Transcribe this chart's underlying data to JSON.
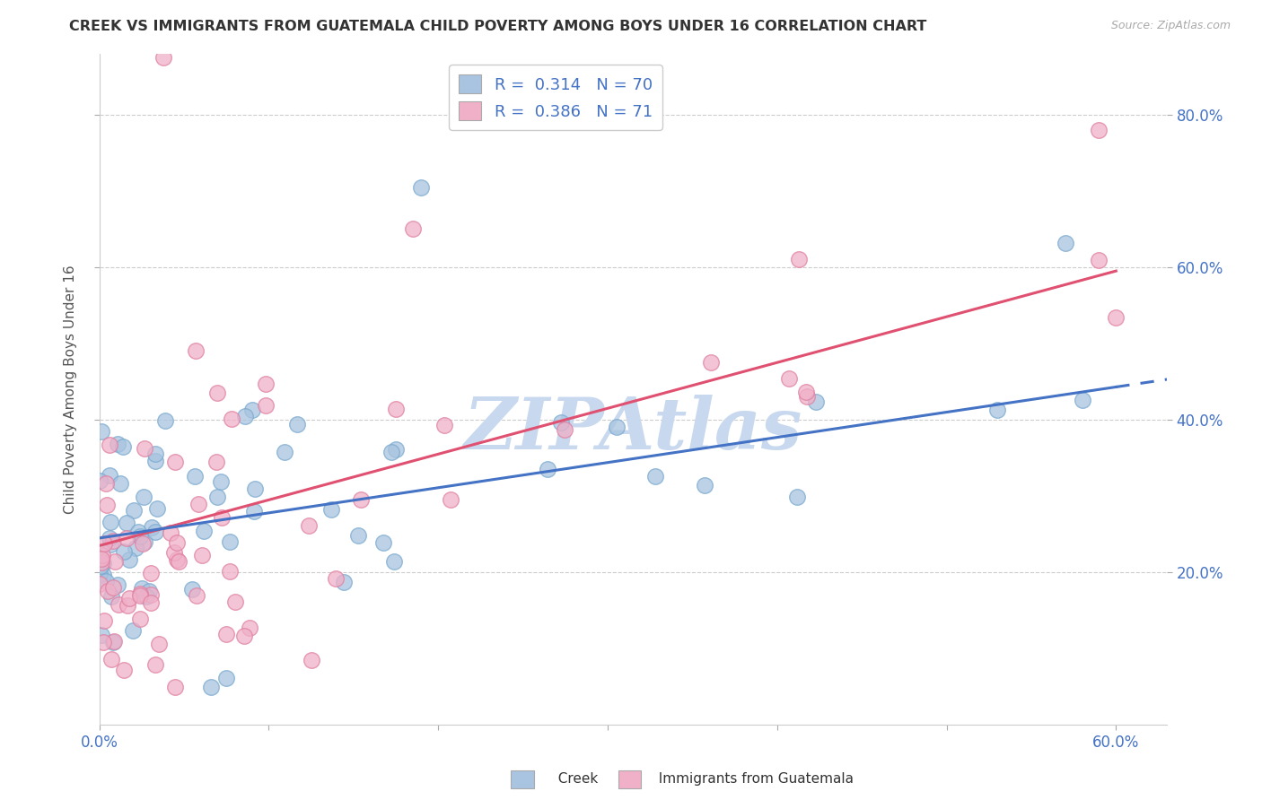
{
  "title": "CREEK VS IMMIGRANTS FROM GUATEMALA CHILD POVERTY AMONG BOYS UNDER 16 CORRELATION CHART",
  "source": "Source: ZipAtlas.com",
  "ylabel": "Child Poverty Among Boys Under 16",
  "xlim": [
    0.0,
    0.63
  ],
  "ylim": [
    0.0,
    0.88
  ],
  "xtick_labels": [
    "0.0%",
    "60.0%"
  ],
  "xtick_values": [
    0.0,
    0.6
  ],
  "ytick_labels": [
    "20.0%",
    "40.0%",
    "60.0%",
    "80.0%"
  ],
  "ytick_values": [
    0.2,
    0.4,
    0.6,
    0.8
  ],
  "creek_color": "#a8c4e0",
  "creek_edge_color": "#7aaad0",
  "guatemala_color": "#f0b0c8",
  "guatemala_edge_color": "#e080a0",
  "creek_line_color": "#4472c4",
  "guatemala_line_color": "#e05070",
  "creek_R": 0.314,
  "creek_N": 70,
  "guatemala_R": 0.386,
  "guatemala_N": 71,
  "legend_text_color": "#4472c4",
  "watermark": "ZIPAtlas",
  "watermark_color": "#c8d8ee",
  "background_color": "#ffffff",
  "grid_color": "#cccccc",
  "title_color": "#333333",
  "source_color": "#aaaaaa",
  "axis_label_color": "#555555",
  "tick_label_color": "#4472c4"
}
